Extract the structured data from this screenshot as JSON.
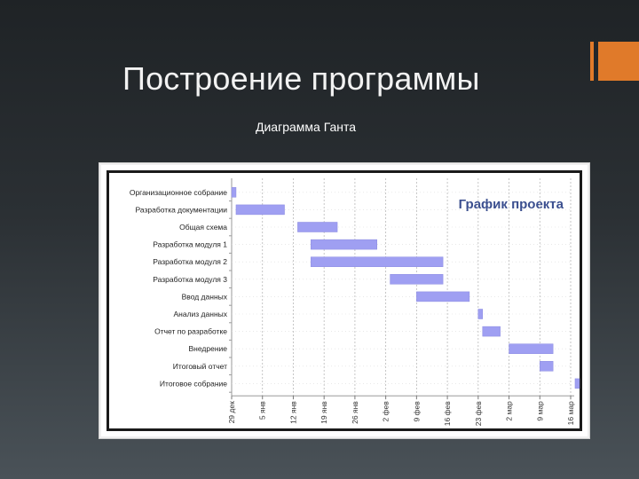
{
  "slide": {
    "title": "Построение программы",
    "subtitle": "Диаграмма Ганта",
    "accent_color": "#e07a2a"
  },
  "chart_data": {
    "type": "bar",
    "subtype": "gantt",
    "title": "График проекта",
    "title_color": "#3b4f8f",
    "bar_color": "#9f9ff2",
    "grid": true,
    "x_ticks": [
      "29 дек",
      "5 янв",
      "12 янв",
      "19 янв",
      "26 янв",
      "2 фев",
      "9 фев",
      "16 фев",
      "23 фев",
      "2 мар",
      "9 мар",
      "16 мар"
    ],
    "x_range_days": [
      0,
      77
    ],
    "tasks": [
      {
        "name": "Организационное собрание",
        "start": 0,
        "end": 1
      },
      {
        "name": "Разработка документации",
        "start": 1,
        "end": 12
      },
      {
        "name": "Общая схема",
        "start": 15,
        "end": 24
      },
      {
        "name": "Разработка модуля 1",
        "start": 18,
        "end": 33
      },
      {
        "name": "Разработка модуля 2",
        "start": 18,
        "end": 48
      },
      {
        "name": "Разработка модуля 3",
        "start": 36,
        "end": 48
      },
      {
        "name": "Ввод данных",
        "start": 42,
        "end": 54
      },
      {
        "name": "Анализ данных",
        "start": 56,
        "end": 57
      },
      {
        "name": "Отчет по разработке",
        "start": 57,
        "end": 61
      },
      {
        "name": "Внедрение",
        "start": 63,
        "end": 73
      },
      {
        "name": "Итоговый отчет",
        "start": 70,
        "end": 73
      },
      {
        "name": "Итоговое собрание",
        "start": 78,
        "end": 79
      }
    ]
  }
}
